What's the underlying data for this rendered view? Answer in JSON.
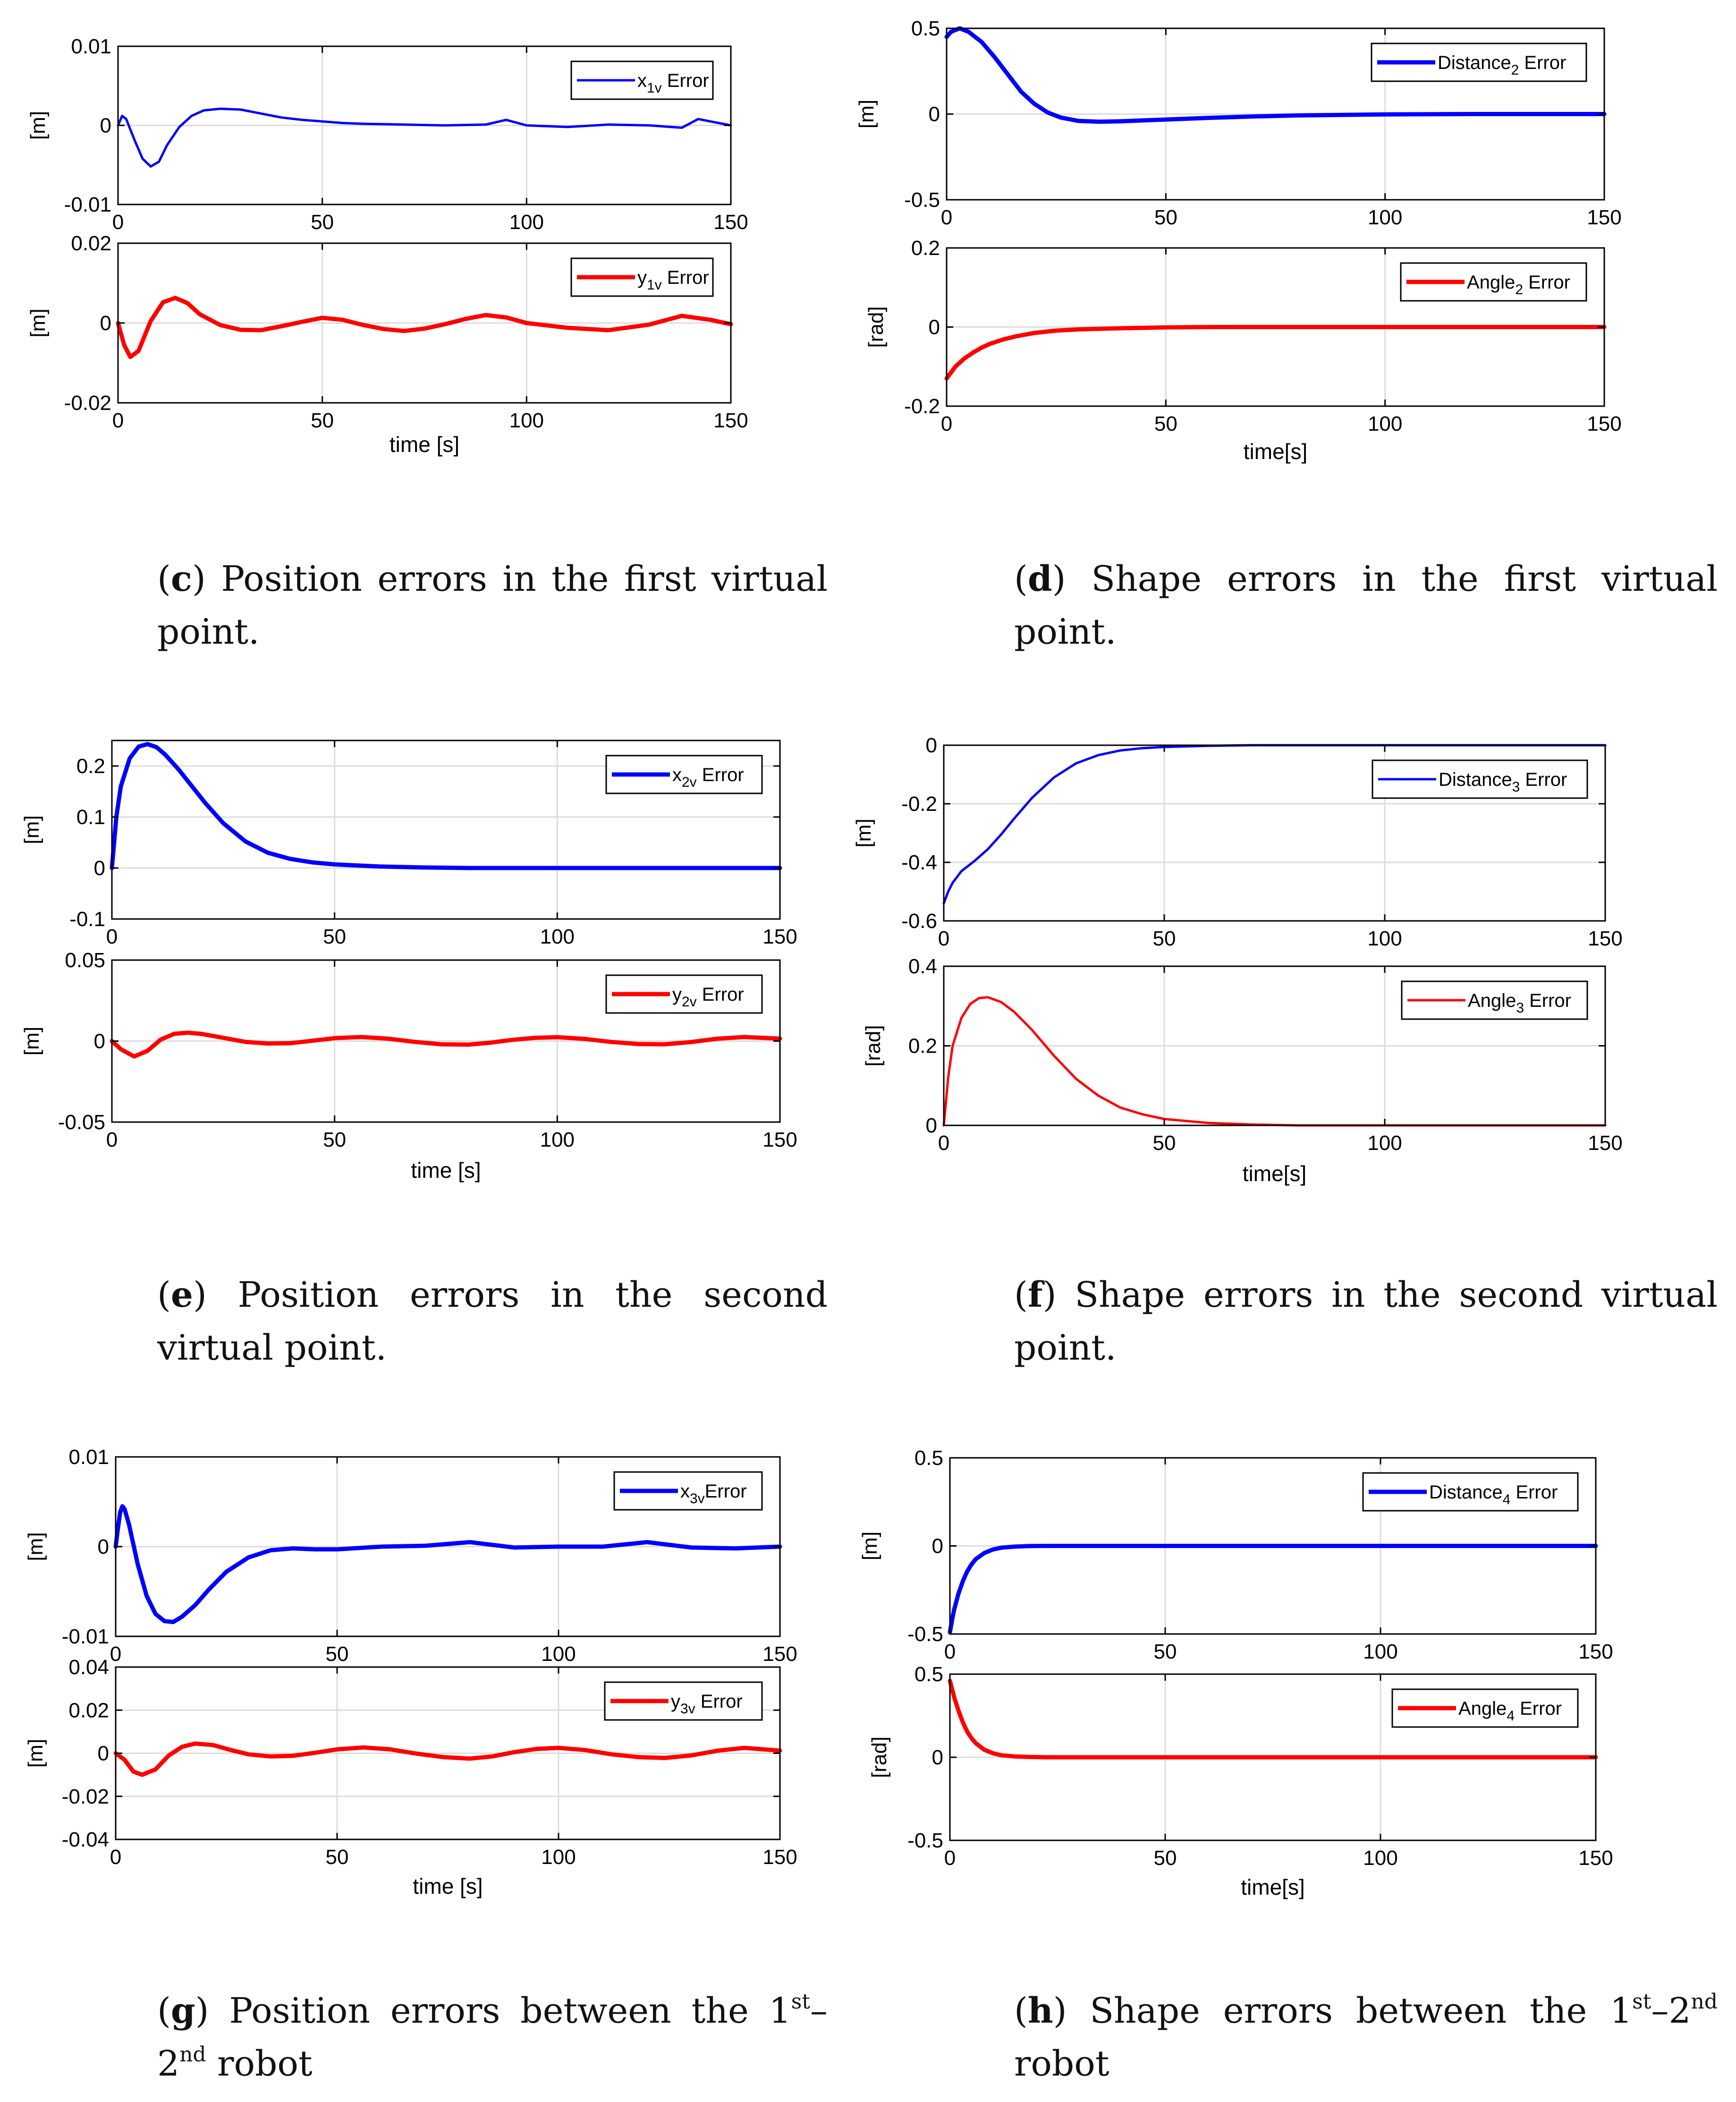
{
  "colors": {
    "blue": "#0000ff",
    "red": "#ff0000",
    "axis": "#000000",
    "grid": "#dcdcdc"
  },
  "figures": [
    {
      "id": "c",
      "caption": {
        "letter": "c",
        "text": "Position errors in the first virtual point."
      },
      "xlabel": "time [s]",
      "chart_data": [
        {
          "type": "line",
          "series_name": "x1v Error",
          "legend_main": "x",
          "legend_sub": "1v",
          "legend_tail": " Error",
          "color": "blue",
          "stroke": "thin",
          "xlim": [
            0,
            150
          ],
          "ylim": [
            -0.01,
            0.01
          ],
          "xticks": [
            "0",
            "50",
            "100",
            "150"
          ],
          "yticks": [
            "-0.01",
            "0",
            "0.01"
          ],
          "ylabel": "[m]",
          "x": [
            0,
            1,
            2,
            4,
            6,
            8,
            10,
            12,
            15,
            18,
            21,
            25,
            30,
            35,
            40,
            45,
            50,
            55,
            60,
            70,
            80,
            90,
            95,
            100,
            110,
            120,
            130,
            138,
            142,
            150
          ],
          "y": [
            0,
            0.0012,
            0.0008,
            -0.0018,
            -0.0042,
            -0.0052,
            -0.0046,
            -0.0025,
            -0.0002,
            0.0012,
            0.0019,
            0.0021,
            0.002,
            0.0015,
            0.001,
            0.0007,
            0.0005,
            0.0003,
            0.0002,
            0.0001,
            0,
            0.0001,
            0.0007,
            0,
            -0.0002,
            0.0001,
            0,
            -0.0003,
            0.0008,
            0
          ]
        },
        {
          "type": "line",
          "series_name": "y1v Error",
          "legend_main": "y",
          "legend_sub": "1v",
          "legend_tail": " Error",
          "color": "red",
          "stroke": "thick",
          "xlim": [
            0,
            150
          ],
          "ylim": [
            -0.02,
            0.02
          ],
          "xticks": [
            "0",
            "50",
            "100",
            "150"
          ],
          "yticks": [
            "-0.02",
            "0",
            "0.02"
          ],
          "ylabel": "[m]",
          "x": [
            0,
            1.5,
            3,
            5,
            8,
            11,
            14,
            17,
            20,
            25,
            30,
            35,
            40,
            45,
            50,
            55,
            60,
            65,
            70,
            75,
            80,
            85,
            90,
            95,
            100,
            110,
            120,
            130,
            138,
            145,
            150
          ],
          "y": [
            0,
            -0.0055,
            -0.0085,
            -0.007,
            0.0005,
            0.0052,
            0.0063,
            0.005,
            0.0022,
            -0.0005,
            -0.0017,
            -0.0018,
            -0.0008,
            0.0003,
            0.0013,
            0.0008,
            -0.0005,
            -0.0015,
            -0.002,
            -0.0014,
            -0.0003,
            0.001,
            0.002,
            0.0014,
            0,
            -0.0012,
            -0.0018,
            -0.0004,
            0.0018,
            0.0008,
            -0.0003
          ]
        }
      ]
    },
    {
      "id": "d",
      "caption": {
        "letter": "d",
        "text": "Shape errors in the first virtual point."
      },
      "xlabel": "time[s]",
      "chart_data": [
        {
          "type": "line",
          "series_name": "Distance2 Error",
          "legend_main": "Distance",
          "legend_sub": "2",
          "legend_tail": " Error",
          "color": "blue",
          "stroke": "thick",
          "xlim": [
            0,
            150
          ],
          "ylim": [
            -0.5,
            0.5
          ],
          "xticks": [
            "0",
            "50",
            "100",
            "150"
          ],
          "yticks": [
            "-0.5",
            "0",
            "0.5"
          ],
          "ylabel": "[m]",
          "x": [
            0,
            1,
            3,
            5,
            8,
            11,
            14,
            17,
            20,
            23,
            26,
            30,
            35,
            40,
            50,
            60,
            70,
            80,
            100,
            120,
            150
          ],
          "y": [
            0.45,
            0.48,
            0.5,
            0.48,
            0.42,
            0.33,
            0.23,
            0.13,
            0.06,
            0.01,
            -0.02,
            -0.04,
            -0.045,
            -0.042,
            -0.032,
            -0.022,
            -0.014,
            -0.008,
            -0.002,
            0,
            0
          ]
        },
        {
          "type": "line",
          "series_name": "Angle2 Error",
          "legend_main": "Angle",
          "legend_sub": "2",
          "legend_tail": " Error",
          "color": "red",
          "stroke": "thick",
          "xlim": [
            0,
            150
          ],
          "ylim": [
            -0.2,
            0.2
          ],
          "xticks": [
            "0",
            "50",
            "100",
            "150"
          ],
          "yticks": [
            "-0.2",
            "0",
            "0.2"
          ],
          "ylabel": "[rad]",
          "x": [
            0,
            1,
            2,
            4,
            6,
            8,
            10,
            13,
            16,
            20,
            25,
            30,
            40,
            50,
            60,
            80,
            100,
            150
          ],
          "y": [
            -0.13,
            -0.115,
            -0.1,
            -0.08,
            -0.065,
            -0.052,
            -0.042,
            -0.031,
            -0.023,
            -0.015,
            -0.009,
            -0.006,
            -0.003,
            -0.001,
            0,
            0,
            0,
            0
          ]
        }
      ]
    },
    {
      "id": "e",
      "caption": {
        "letter": "e",
        "text": "Position errors in the second virtual point."
      },
      "xlabel": "time [s]",
      "chart_data": [
        {
          "type": "line",
          "series_name": "x2v Error",
          "legend_main": "x",
          "legend_sub": "2v",
          "legend_tail": " Error",
          "color": "blue",
          "stroke": "thick",
          "xlim": [
            0,
            150
          ],
          "ylim": [
            -0.1,
            0.25
          ],
          "xticks": [
            "0",
            "50",
            "100",
            "150"
          ],
          "yticks": [
            "-0.1",
            "0",
            "0.1",
            "0.2"
          ],
          "ylabel": "[m]",
          "x": [
            0,
            1,
            2,
            4,
            6,
            8,
            10,
            12,
            15,
            18,
            21,
            25,
            30,
            35,
            40,
            45,
            50,
            60,
            70,
            80,
            100,
            150
          ],
          "y": [
            0,
            0.1,
            0.16,
            0.215,
            0.238,
            0.243,
            0.237,
            0.222,
            0.193,
            0.16,
            0.127,
            0.088,
            0.052,
            0.03,
            0.018,
            0.011,
            0.007,
            0.003,
            0.001,
            0,
            0,
            0
          ]
        },
        {
          "type": "line",
          "series_name": "y2v Error",
          "legend_main": "y",
          "legend_sub": "2v",
          "legend_tail": " Error",
          "color": "red",
          "stroke": "thick",
          "xlim": [
            0,
            150
          ],
          "ylim": [
            -0.05,
            0.05
          ],
          "xticks": [
            "0",
            "50",
            "100",
            "150"
          ],
          "yticks": [
            "-0.05",
            "0",
            "0.05"
          ],
          "ylabel": "[m]",
          "x": [
            0,
            2,
            5,
            8,
            11,
            14,
            17,
            20,
            25,
            30,
            35,
            40,
            45,
            50,
            56,
            62,
            68,
            74,
            80,
            85,
            90,
            95,
            100,
            106,
            112,
            118,
            124,
            130,
            136,
            142,
            150
          ],
          "y": [
            0,
            -0.005,
            -0.0095,
            -0.006,
            0.001,
            0.0045,
            0.0052,
            0.0045,
            0.002,
            -0.0005,
            -0.0015,
            -0.0013,
            0.0002,
            0.0018,
            0.0025,
            0.0015,
            -0.0005,
            -0.002,
            -0.0022,
            -0.001,
            0.0008,
            0.002,
            0.0024,
            0.0014,
            -0.0005,
            -0.0018,
            -0.002,
            -0.0006,
            0.0015,
            0.0025,
            0.0015
          ]
        }
      ]
    },
    {
      "id": "f",
      "caption": {
        "letter": "f",
        "text": "Shape errors in the second virtual point."
      },
      "xlabel": "time[s]",
      "chart_data": [
        {
          "type": "line",
          "series_name": "Distance3 Error",
          "legend_main": "Distance",
          "legend_sub": "3",
          "legend_tail": " Error",
          "color": "blue",
          "stroke": "thin",
          "xlim": [
            0,
            150
          ],
          "ylim": [
            -0.6,
            0
          ],
          "xticks": [
            "0",
            "50",
            "100",
            "150"
          ],
          "yticks": [
            "-0.6",
            "-0.4",
            "-0.2",
            "0"
          ],
          "ylabel": "[m]",
          "x": [
            0,
            1,
            2,
            4,
            7,
            10,
            13,
            16,
            20,
            25,
            30,
            35,
            40,
            45,
            50,
            60,
            70,
            80,
            100,
            150
          ],
          "y": [
            -0.54,
            -0.5,
            -0.47,
            -0.43,
            -0.395,
            -0.355,
            -0.305,
            -0.25,
            -0.18,
            -0.11,
            -0.062,
            -0.034,
            -0.018,
            -0.01,
            -0.006,
            -0.002,
            0,
            0,
            0,
            0
          ]
        },
        {
          "type": "line",
          "series_name": "Angle3 Error",
          "legend_main": "Angle",
          "legend_sub": "3",
          "legend_tail": " Error",
          "color": "red",
          "stroke": "thin",
          "xlim": [
            0,
            150
          ],
          "ylim": [
            0,
            0.4
          ],
          "xticks": [
            "0",
            "50",
            "100",
            "150"
          ],
          "yticks": [
            "0",
            "0.2",
            "0.4"
          ],
          "ylabel": "[rad]",
          "x": [
            0,
            1,
            2,
            4,
            6,
            8,
            10,
            13,
            16,
            20,
            25,
            30,
            35,
            40,
            45,
            50,
            60,
            70,
            80,
            100,
            150
          ],
          "y": [
            0,
            0.12,
            0.2,
            0.27,
            0.305,
            0.32,
            0.322,
            0.31,
            0.285,
            0.24,
            0.175,
            0.117,
            0.075,
            0.045,
            0.028,
            0.016,
            0.006,
            0.002,
            0,
            0,
            0
          ]
        }
      ]
    },
    {
      "id": "g",
      "caption": {
        "letter": "g",
        "text_before": "Position errors between the 1",
        "sup1": "st",
        "text_mid": "–2",
        "sup2": "nd",
        "text_after": " robot"
      },
      "xlabel": "time [s]",
      "chart_data": [
        {
          "type": "line",
          "series_name": "x3v Error",
          "legend_main": "x",
          "legend_sub": "3v",
          "legend_tail": "Error",
          "color": "blue",
          "stroke": "thick",
          "xlim": [
            0,
            150
          ],
          "ylim": [
            -0.01,
            0.01
          ],
          "xticks": [
            "0",
            "50",
            "100",
            "150"
          ],
          "yticks": [
            "-0.01",
            "0",
            "0.01"
          ],
          "ylabel": "[m]",
          "x": [
            0,
            0.5,
            1,
            1.5,
            2,
            3,
            5,
            7,
            9,
            11,
            13,
            15,
            18,
            21,
            25,
            30,
            35,
            40,
            45,
            50,
            60,
            70,
            80,
            90,
            100,
            110,
            120,
            130,
            140,
            150
          ],
          "y": [
            0,
            0.002,
            0.0038,
            0.0045,
            0.0042,
            0.0025,
            -0.002,
            -0.0055,
            -0.0075,
            -0.0083,
            -0.0084,
            -0.0078,
            -0.0065,
            -0.0048,
            -0.0028,
            -0.0012,
            -0.0004,
            -0.0002,
            -0.0003,
            -0.0003,
            0,
            0.0001,
            0.0005,
            -0.0001,
            0,
            0,
            0.0005,
            -0.0001,
            -0.0002,
            0
          ]
        },
        {
          "type": "line",
          "series_name": "y3v Error",
          "legend_main": "y",
          "legend_sub": "3v",
          "legend_tail": " Error",
          "color": "red",
          "stroke": "thick",
          "xlim": [
            0,
            150
          ],
          "ylim": [
            -0.04,
            0.04
          ],
          "xticks": [
            "0",
            "50",
            "100",
            "150"
          ],
          "yticks": [
            "-0.04",
            "-0.02",
            "0",
            "0.02",
            "0.04"
          ],
          "ylabel": "[m]",
          "x": [
            0,
            2,
            4,
            6,
            9,
            12,
            15,
            18,
            22,
            26,
            30,
            35,
            40,
            45,
            50,
            56,
            62,
            68,
            74,
            80,
            85,
            90,
            95,
            100,
            106,
            112,
            118,
            124,
            130,
            136,
            142,
            150
          ],
          "y": [
            0,
            -0.003,
            -0.0085,
            -0.01,
            -0.0075,
            -0.001,
            0.003,
            0.0045,
            0.0038,
            0.0015,
            -0.0005,
            -0.0015,
            -0.0012,
            0.0002,
            0.0018,
            0.0027,
            0.0018,
            -0.0002,
            -0.0018,
            -0.0025,
            -0.0015,
            0.0005,
            0.002,
            0.0025,
            0.0015,
            -0.0005,
            -0.0018,
            -0.0022,
            -0.001,
            0.0012,
            0.0025,
            0.0012
          ]
        }
      ]
    },
    {
      "id": "h",
      "caption": {
        "letter": "h",
        "text_before": "Shape errors between the 1",
        "sup1": "st",
        "text_mid": "–2",
        "sup2": "nd",
        "text_after": " robot"
      },
      "xlabel": "time[s]",
      "chart_data": [
        {
          "type": "line",
          "series_name": "Distance4 Error",
          "legend_main": "Distance",
          "legend_sub": "4",
          "legend_tail": " Error",
          "color": "blue",
          "stroke": "thick",
          "xlim": [
            0,
            150
          ],
          "ylim": [
            -0.5,
            0.5
          ],
          "xticks": [
            "0",
            "50",
            "100",
            "150"
          ],
          "yticks": [
            "-0.5",
            "0",
            "0.5"
          ],
          "ylabel": "[m]",
          "x": [
            0,
            0.5,
            1,
            2,
            3,
            4,
            5,
            6,
            8,
            10,
            12,
            15,
            18,
            22,
            30,
            150
          ],
          "y": [
            -0.49,
            -0.42,
            -0.36,
            -0.27,
            -0.2,
            -0.145,
            -0.105,
            -0.075,
            -0.04,
            -0.02,
            -0.01,
            -0.004,
            -0.001,
            0,
            0,
            0
          ]
        },
        {
          "type": "line",
          "series_name": "Angle4 Error",
          "legend_main": "Angle",
          "legend_sub": "4",
          "legend_tail": " Error",
          "color": "red",
          "stroke": "thick",
          "xlim": [
            0,
            150
          ],
          "ylim": [
            -0.5,
            0.5
          ],
          "xticks": [
            "0",
            "50",
            "100",
            "150"
          ],
          "yticks": [
            "-0.5",
            "0",
            "0.5"
          ],
          "ylabel": "[rad]",
          "x": [
            0,
            0.5,
            1,
            2,
            3,
            4,
            5,
            6,
            8,
            10,
            12,
            15,
            18,
            22,
            30,
            150
          ],
          "y": [
            0.46,
            0.41,
            0.36,
            0.28,
            0.21,
            0.155,
            0.115,
            0.085,
            0.045,
            0.024,
            0.012,
            0.005,
            0.002,
            0,
            0,
            0
          ]
        }
      ]
    }
  ]
}
